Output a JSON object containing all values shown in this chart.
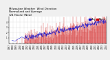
{
  "title_line1": "Milwaukee Weather  Wind Direction",
  "title_line2": "Normalized and Average",
  "title_line3": "(24 Hours) (New)",
  "bg_color": "#f0f0f0",
  "plot_bg_color": "#ffffff",
  "grid_color": "#aaaaaa",
  "bar_color": "#cc0000",
  "avg_color": "#0000cc",
  "ylim": [
    0,
    5
  ],
  "ytick_vals": [
    1,
    2,
    3,
    4
  ],
  "n_points": 320,
  "seed": 42,
  "title_fontsize": 2.8,
  "tick_fontsize": 2.0,
  "legend_fontsize": 2.5,
  "year_start": 1997,
  "year_end": 2025
}
